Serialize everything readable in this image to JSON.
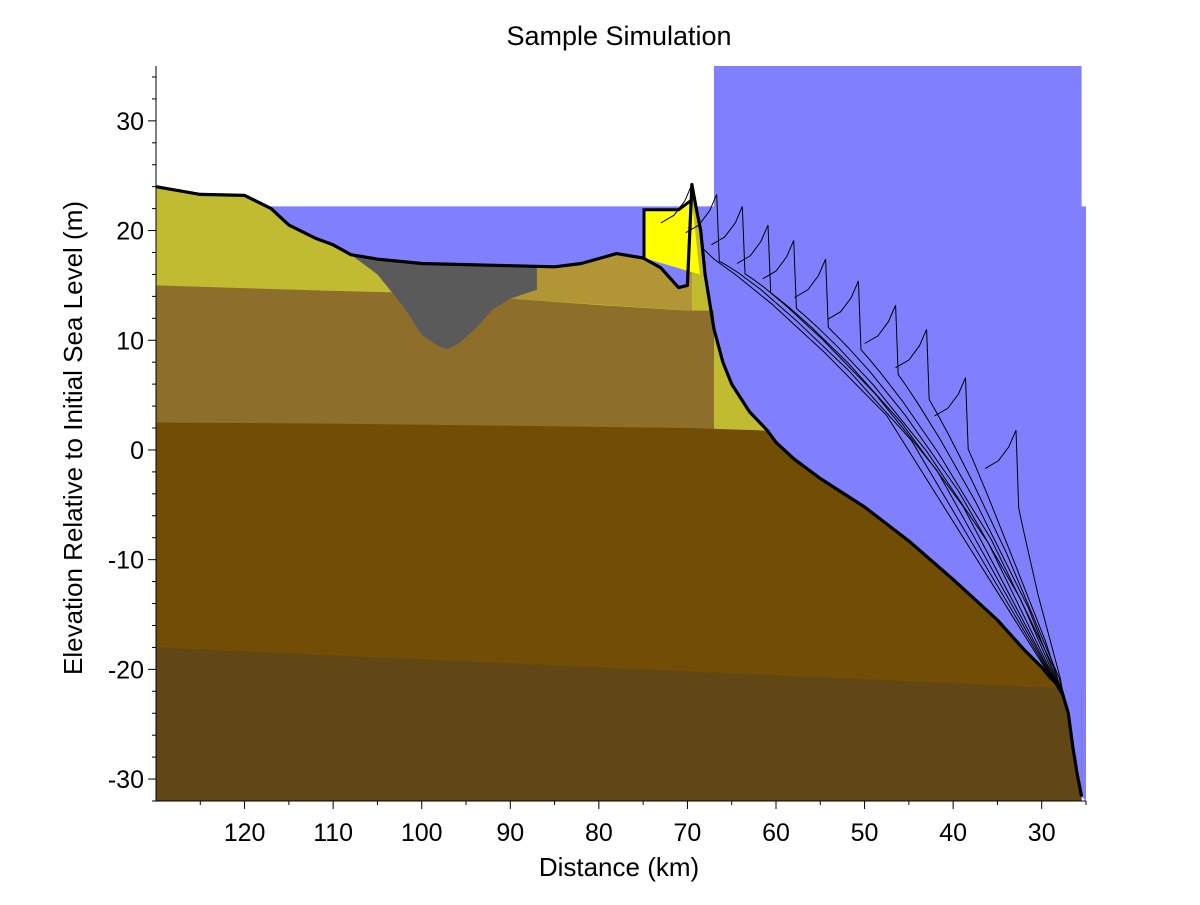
{
  "chart_data": {
    "type": "area",
    "title": "Sample Simulation",
    "xlabel": "Distance (km)",
    "ylabel": "Elevation Relative to Initial Sea Level (m)",
    "x_reversed": true,
    "xlim": [
      130,
      25
    ],
    "ylim": [
      -32,
      35
    ],
    "x_ticks": [
      120,
      110,
      100,
      90,
      80,
      70,
      60,
      50,
      40,
      30
    ],
    "y_ticks": [
      30,
      20,
      10,
      0,
      -10,
      -20,
      -30
    ],
    "grid": false,
    "legend": "none",
    "sea_level": 22.2,
    "colors": {
      "water": "#8080ff",
      "bedrock_bottom": "#614715",
      "bedrock_layer": "#714d06",
      "sediment_layer": "#8d6e2b",
      "upper_unit": "#c0bb30",
      "ridge_unit": "#b29535",
      "channel_fill": "#5a5a5a",
      "barrier_sand": "#ffff00",
      "surface_line": "#000000"
    },
    "surface_profile": {
      "x": [
        130,
        125,
        120,
        117,
        115,
        112,
        110,
        108,
        105,
        100,
        95,
        90,
        85,
        82,
        78,
        75,
        73,
        71,
        70,
        69.5,
        69,
        68.5,
        68,
        67,
        66,
        65,
        63,
        61,
        60,
        58,
        55,
        50,
        45,
        40,
        35,
        32,
        30,
        29,
        28,
        27.8,
        27,
        26.5,
        26,
        25.5
      ],
      "y": [
        24,
        23.3,
        23.2,
        22,
        20.5,
        19.3,
        18.7,
        17.8,
        17.4,
        17,
        16.9,
        16.8,
        16.7,
        17,
        17.9,
        17.5,
        16.6,
        14.8,
        15,
        24.2,
        22,
        20,
        16,
        11,
        8,
        6,
        3.5,
        1.8,
        0.7,
        -0.8,
        -2.6,
        -5.2,
        -8.3,
        -11.8,
        -15.5,
        -18.2,
        -19.8,
        -20.8,
        -21.5,
        -21.8,
        -24,
        -27,
        -29.5,
        -31.6
      ]
    },
    "layers": [
      {
        "name": "",
        "x": [
          130,
          25.5
        ],
        "top": [
          -18,
          -21.8
        ]
      },
      {
        "name": "",
        "x": [
          130,
          110,
          90,
          70,
          62,
          40,
          25.5
        ],
        "top": [
          2.5,
          2.4,
          2.2,
          2,
          1.8,
          0.5,
          -22
        ]
      },
      {
        "name": "",
        "x": [
          130,
          110,
          100,
          90,
          80,
          70,
          67
        ],
        "top": [
          15,
          14.5,
          14.3,
          13.8,
          13.2,
          12.7,
          12.7
        ]
      }
    ],
    "channel": {
      "x": [
        108,
        105,
        102,
        100,
        98,
        97,
        96,
        94,
        92,
        90,
        87
      ],
      "bottom": [
        17.8,
        16,
        13,
        10.5,
        9.4,
        9.2,
        9.6,
        11,
        12.8,
        13.8,
        14.6
      ]
    },
    "barrier": {
      "x_start": 74.9,
      "x_end": 68.6,
      "top": 21.9,
      "base": 17.5
    },
    "shoreline_positions": [
      {
        "x": 69.5,
        "y": 24.2
      },
      {
        "x": 66.7,
        "y": 23.3
      },
      {
        "x": 63.8,
        "y": 22.2
      },
      {
        "x": 60.9,
        "y": 20.5
      },
      {
        "x": 58,
        "y": 19.1
      },
      {
        "x": 54.4,
        "y": 17.4
      },
      {
        "x": 50.7,
        "y": 15.4
      },
      {
        "x": 46.5,
        "y": 13.2
      },
      {
        "x": 43,
        "y": 11
      },
      {
        "x": 38.6,
        "y": 6.6
      },
      {
        "x": 32.9,
        "y": 1.8
      }
    ]
  }
}
